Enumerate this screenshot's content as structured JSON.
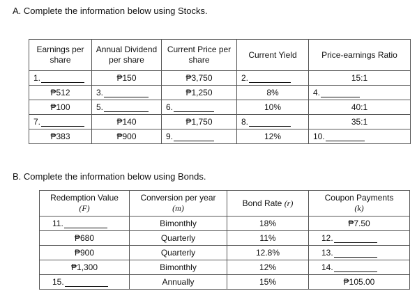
{
  "partA": {
    "heading": "A.  Complete the information below using Stocks.",
    "headers": [
      "Earnings per share",
      "Annual Dividend per share",
      "Current Price per share",
      "Current Yield",
      "Price-earnings Ratio"
    ],
    "rows": [
      [
        "1.",
        "₱150",
        "₱3,750",
        "2.",
        "15:1"
      ],
      [
        "₱512",
        "3.",
        "₱1,250",
        "8%",
        "4."
      ],
      [
        "₱100",
        "5.",
        "6.",
        "10%",
        "40:1"
      ],
      [
        "7.",
        "₱140",
        "₱1,750",
        "8.",
        "35:1"
      ],
      [
        "₱383",
        "₱900",
        "9.",
        "12%",
        "10."
      ]
    ]
  },
  "partB": {
    "heading": "B.  Complete the information below using Bonds.",
    "headers": [
      {
        "label": "Redemption Value",
        "symbol": "(F)"
      },
      {
        "label": "Conversion per year",
        "symbol": "(m)"
      },
      {
        "label": "Bond Rate",
        "symbol": "(r)"
      },
      {
        "label": "Coupon Payments",
        "symbol": "(k)"
      }
    ],
    "rows": [
      [
        "11.",
        "Bimonthly",
        "18%",
        "₱7.50"
      ],
      [
        "₱680",
        "Quarterly",
        "11%",
        "12."
      ],
      [
        "₱900",
        "Quarterly",
        "12.8%",
        "13."
      ],
      [
        "₱1,300",
        "Bimonthly",
        "12%",
        "14."
      ],
      [
        "15.",
        "Annually",
        "15%",
        "₱105.00"
      ]
    ]
  }
}
